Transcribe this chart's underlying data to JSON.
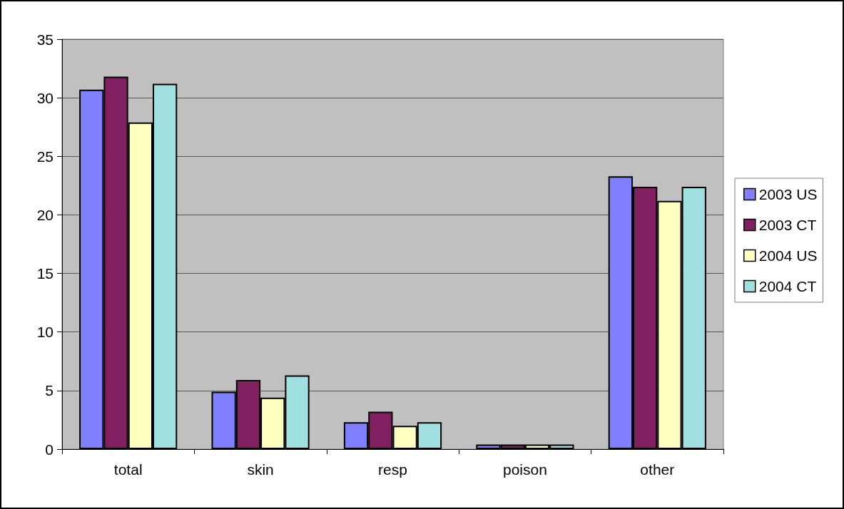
{
  "chart_data": {
    "type": "bar",
    "categories": [
      "total",
      "skin",
      "resp",
      "poison",
      "other"
    ],
    "series": [
      {
        "name": "2003 US",
        "color": "#8080ff",
        "values": [
          30.7,
          4.9,
          2.3,
          0.4,
          23.3
        ]
      },
      {
        "name": "2003 CT",
        "color": "#802060",
        "values": [
          31.8,
          5.9,
          3.2,
          0.4,
          22.4
        ]
      },
      {
        "name": "2004 US",
        "color": "#ffffc0",
        "values": [
          27.9,
          4.4,
          2.0,
          0.4,
          21.2
        ]
      },
      {
        "name": "2004 CT",
        "color": "#a0e0e0",
        "values": [
          31.2,
          6.3,
          2.3,
          0.4,
          22.4
        ]
      }
    ],
    "ylim": [
      0,
      35
    ],
    "yticks": [
      0,
      5,
      10,
      15,
      20,
      25,
      30,
      35
    ],
    "grid": "y",
    "legend": "right"
  }
}
